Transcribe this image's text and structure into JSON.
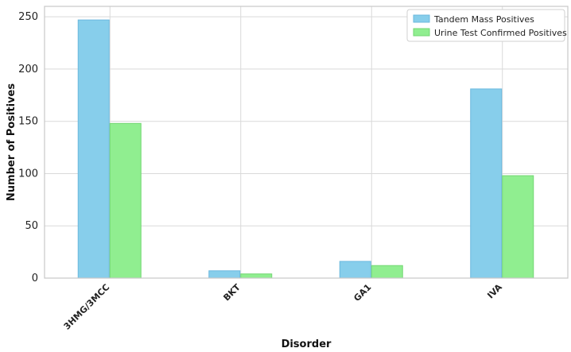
{
  "chart_data": {
    "type": "bar",
    "title": "",
    "xlabel": "Disorder",
    "ylabel": "Number of Positives",
    "categories": [
      "3HMG/3MCC",
      "BKT",
      "GA1",
      "IVA"
    ],
    "series": [
      {
        "name": "Tandem Mass Positives",
        "color": "#87ceeb",
        "edge": "#6bb8de",
        "values": [
          247,
          7,
          16,
          181
        ]
      },
      {
        "name": "Urine Test Confirmed Positives",
        "color": "#90ee90",
        "edge": "#72d772",
        "values": [
          148,
          4,
          12,
          98
        ]
      }
    ],
    "ylim": [
      0,
      260
    ],
    "yticks": [
      0,
      50,
      100,
      150,
      200,
      250
    ],
    "grid": true,
    "legend_position": "top-right"
  }
}
